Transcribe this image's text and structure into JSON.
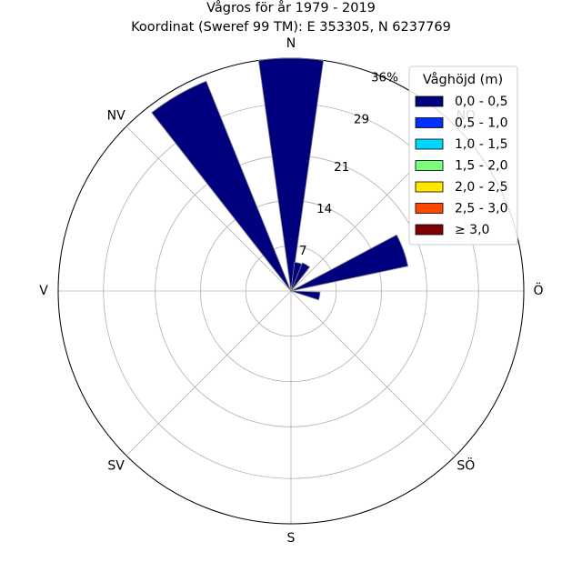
{
  "chart_data": {
    "type": "windrose",
    "title": "Vågros för år 1979 - 2019",
    "subtitle": "Koordinat (Sweref 99 TM): E 353305, N 6237769",
    "directions": [
      "N",
      "NO",
      "Ö",
      "SÖ",
      "S",
      "SV",
      "V",
      "NV"
    ],
    "direction_angles_deg": [
      0,
      45,
      90,
      135,
      180,
      225,
      270,
      315
    ],
    "radial_ticks": [
      7,
      14,
      21,
      29,
      36
    ],
    "radial_tick_labels": [
      "7",
      "14",
      "21",
      "29",
      "36%"
    ],
    "radial_max": 36,
    "grid": true,
    "legend": {
      "title": "Våghöjd (m)",
      "placement": "top-right",
      "entries": [
        {
          "label": "0,0 - 0,5",
          "color": "#00007f"
        },
        {
          "label": "0,5 - 1,0",
          "color": "#0030ff"
        },
        {
          "label": "1,0 - 1,5",
          "color": "#00d4ff"
        },
        {
          "label": "1,5 - 2,0",
          "color": "#7bff7b"
        },
        {
          "label": "2,0 - 2,5",
          "color": "#ffe500"
        },
        {
          "label": "2,5 - 3,0",
          "color": "#ff4700"
        },
        {
          "label": "≥ 3,0",
          "color": "#7f0000"
        }
      ]
    },
    "bar_width_deg": 16,
    "series": [
      {
        "name": "0,0 - 0,5",
        "bars": [
          {
            "direction_deg": 0,
            "value": 36
          },
          {
            "direction_deg": 15,
            "value": 4.5
          },
          {
            "direction_deg": 30,
            "value": 4.7
          },
          {
            "direction_deg": 70,
            "value": 18.5
          },
          {
            "direction_deg": 100,
            "value": 4.5
          },
          {
            "direction_deg": 330,
            "value": 35
          }
        ]
      }
    ]
  }
}
